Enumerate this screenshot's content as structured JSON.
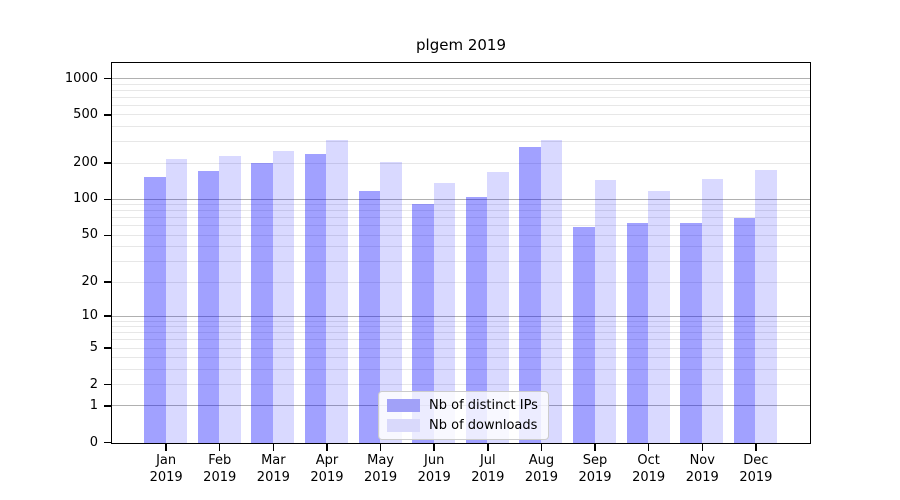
{
  "title": "plgem 2019",
  "legend": {
    "items": [
      {
        "label": "Nb of distinct IPs"
      },
      {
        "label": "Nb of downloads"
      }
    ]
  },
  "chart_data": {
    "type": "bar",
    "title": "plgem 2019",
    "categories": [
      "Jan 2019",
      "Feb 2019",
      "Mar 2019",
      "Apr 2019",
      "May 2019",
      "Jun 2019",
      "Jul 2019",
      "Aug 2019",
      "Sep 2019",
      "Oct 2019",
      "Nov 2019",
      "Dec 2019"
    ],
    "series": [
      {
        "name": "Nb of distinct IPs",
        "color": "#0000ff",
        "opacity": 0.37,
        "color_composited": "#a1a1f8",
        "values": [
          155,
          173,
          202,
          240,
          118,
          93,
          106,
          272,
          59,
          64,
          64,
          70
        ]
      },
      {
        "name": "Nb of downloads",
        "color": "#0000ff",
        "opacity": 0.15,
        "color_composited": "#d9d9fb",
        "values": [
          217,
          230,
          256,
          312,
          206,
          137,
          169,
          312,
          145,
          118,
          148,
          178
        ]
      }
    ],
    "xlabel": "",
    "ylabel": "",
    "yscale": "log1p",
    "ylim": [
      0,
      1300
    ],
    "yticks": [
      0,
      1,
      2,
      5,
      10,
      20,
      50,
      100,
      200,
      500,
      1000
    ],
    "minor_grid_values": [
      3,
      4,
      6,
      7,
      8,
      9,
      30,
      40,
      60,
      70,
      80,
      90,
      300,
      400,
      600,
      700,
      800,
      900
    ],
    "grid": true,
    "grid_color_major": "#b0b0b0",
    "grid_color_minor": "#e7e7e7",
    "legend_position": "inside lower-center"
  }
}
